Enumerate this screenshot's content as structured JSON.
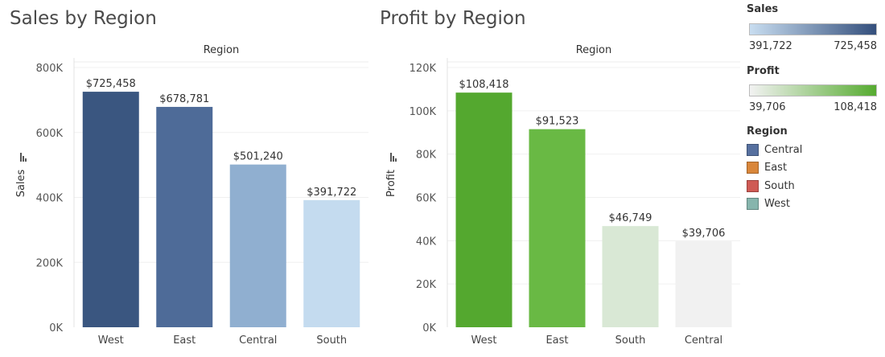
{
  "chart_data": [
    {
      "type": "bar",
      "title": "Sales by Region",
      "xlabel": "Region",
      "ylabel": "Sales",
      "categories": [
        "West",
        "East",
        "Central",
        "South"
      ],
      "values": [
        725458,
        678781,
        501240,
        391722
      ],
      "data_labels": [
        "$725,458",
        "$678,781",
        "$501,240",
        "$391,722"
      ],
      "ylim": [
        0,
        800000
      ],
      "yticks": [
        0,
        200000,
        400000,
        600000,
        800000
      ],
      "ytick_labels": [
        "0K",
        "200K",
        "400K",
        "600K",
        "800K"
      ],
      "colors": [
        "#3a5680",
        "#4e6b98",
        "#90afd0",
        "#c4dbef"
      ],
      "grid": true
    },
    {
      "type": "bar",
      "title": "Profit by Region",
      "xlabel": "Region",
      "ylabel": "Profit",
      "categories": [
        "West",
        "East",
        "South",
        "Central"
      ],
      "values": [
        108418,
        91523,
        46749,
        39706
      ],
      "data_labels": [
        "$108,418",
        "$91,523",
        "$46,749",
        "$39,706"
      ],
      "ylim": [
        0,
        120000
      ],
      "yticks": [
        0,
        20000,
        40000,
        60000,
        80000,
        100000,
        120000
      ],
      "ytick_labels": [
        "0K",
        "20K",
        "40K",
        "60K",
        "80K",
        "100K",
        "120K"
      ],
      "colors": [
        "#54a82f",
        "#69b944",
        "#d9e8d5",
        "#f1f1f1"
      ],
      "grid": true
    }
  ],
  "legend": {
    "sales": {
      "title": "Sales",
      "min": "391,722",
      "max": "725,458",
      "color_start": "#c8ddf0",
      "color_end": "#344f7c"
    },
    "profit": {
      "title": "Profit",
      "min": "39,706",
      "max": "108,418",
      "color_start": "#f2f2f2",
      "color_end": "#56ab30"
    },
    "region": {
      "title": "Region",
      "items": [
        {
          "label": "Central",
          "color": "#56709f"
        },
        {
          "label": "East",
          "color": "#d9863a"
        },
        {
          "label": "South",
          "color": "#cf5a54"
        },
        {
          "label": "West",
          "color": "#86b5ad"
        }
      ]
    }
  }
}
